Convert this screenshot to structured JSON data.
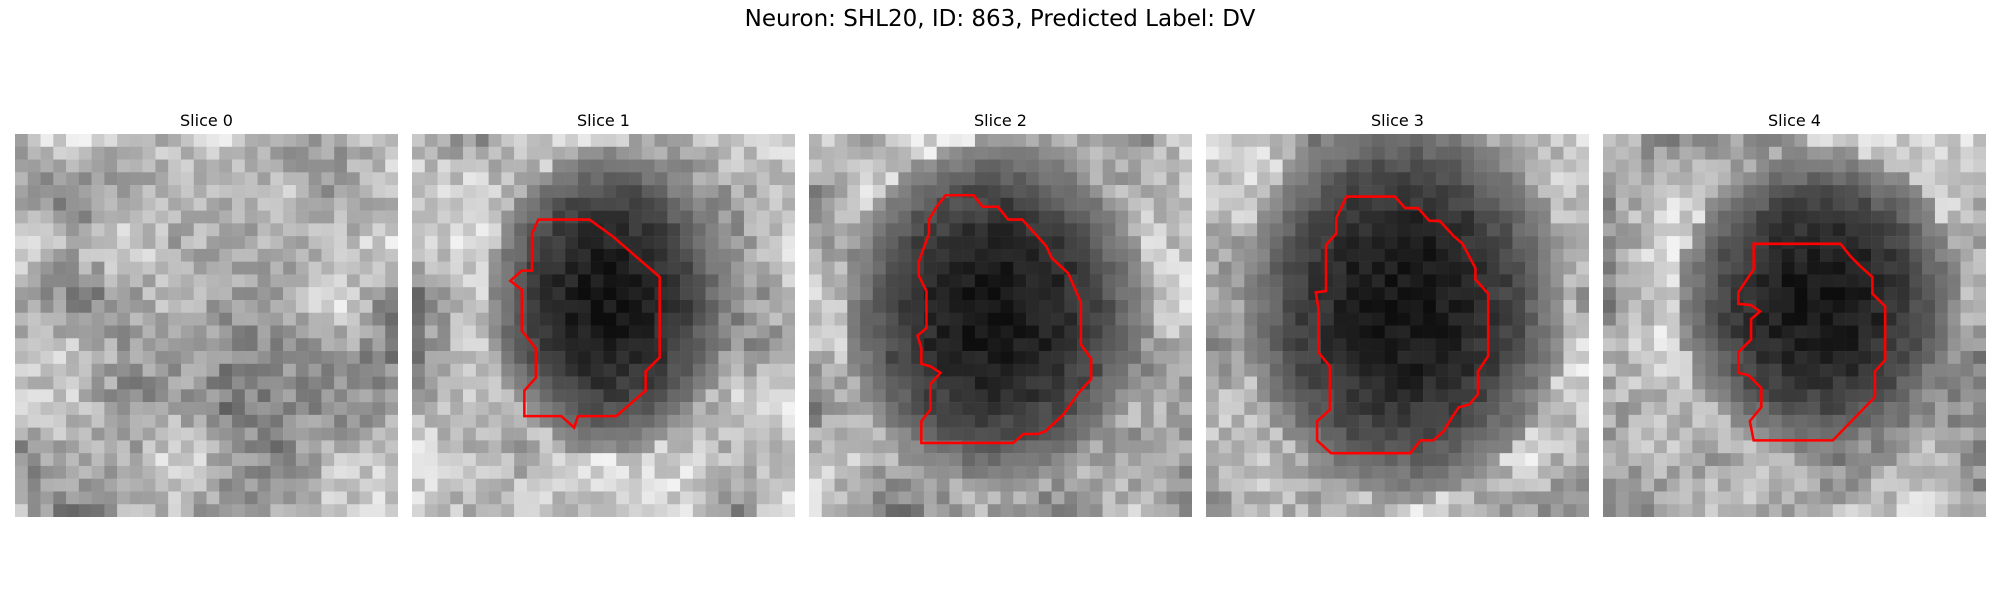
{
  "figure": {
    "title": "Neuron: SHL20, ID: 863, Predicted Label: DV"
  },
  "slices": [
    {
      "label": "Slice 0",
      "has_contour": false,
      "blob": null
    },
    {
      "label": "Slice 1",
      "has_contour": true,
      "blob": [
        0.5,
        0.42,
        0.24,
        0.3
      ]
    },
    {
      "label": "Slice 2",
      "has_contour": true,
      "blob": [
        0.47,
        0.45,
        0.3,
        0.34
      ]
    },
    {
      "label": "Slice 3",
      "has_contour": true,
      "blob": [
        0.5,
        0.43,
        0.32,
        0.38
      ]
    },
    {
      "label": "Slice 4",
      "has_contour": true,
      "blob": [
        0.55,
        0.42,
        0.28,
        0.3
      ]
    }
  ],
  "colors": {
    "contour": "#ff0000",
    "background": "#ffffff"
  }
}
